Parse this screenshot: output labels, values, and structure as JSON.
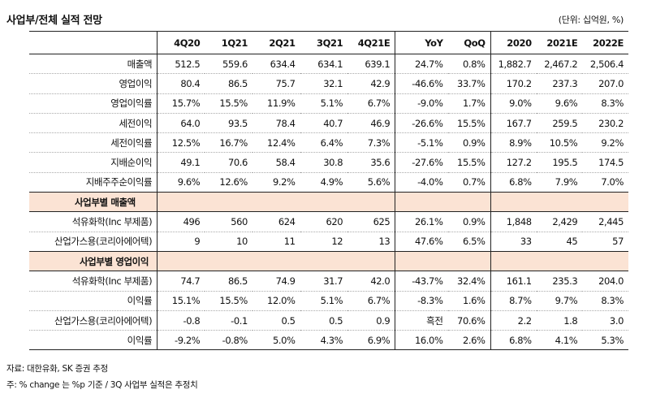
{
  "title": "사업부/전체 실적 전망",
  "unit": "(단위: 십억원, %)",
  "columns": [
    "",
    "4Q20",
    "1Q21",
    "2Q21",
    "3Q21",
    "4Q21E",
    "YoY",
    "QoQ",
    "2020",
    "2021E",
    "2022E"
  ],
  "rows": [
    {
      "label": "매출액",
      "values": [
        "512.5",
        "559.6",
        "634.4",
        "634.1",
        "639.1",
        "24.7%",
        "0.8%",
        "1,882.7",
        "2,467.2",
        "2,506.4"
      ]
    },
    {
      "label": "영업이익",
      "values": [
        "80.4",
        "86.5",
        "75.7",
        "32.1",
        "42.9",
        "-46.6%",
        "33.7%",
        "170.2",
        "237.3",
        "207.0"
      ]
    },
    {
      "label": "영업이익률",
      "values": [
        "15.7%",
        "15.5%",
        "11.9%",
        "5.1%",
        "6.7%",
        "-9.0%",
        "1.7%",
        "9.0%",
        "9.6%",
        "8.3%"
      ]
    },
    {
      "label": "세전이익",
      "values": [
        "64.0",
        "93.5",
        "78.4",
        "40.7",
        "46.9",
        "-26.6%",
        "15.5%",
        "167.7",
        "259.5",
        "230.2"
      ]
    },
    {
      "label": "세전이익률",
      "values": [
        "12.5%",
        "16.7%",
        "12.4%",
        "6.4%",
        "7.3%",
        "-5.1%",
        "0.9%",
        "8.9%",
        "10.5%",
        "9.2%"
      ]
    },
    {
      "label": "지배순이익",
      "values": [
        "49.1",
        "70.6",
        "58.4",
        "30.8",
        "35.6",
        "-27.6%",
        "15.5%",
        "127.2",
        "195.5",
        "174.5"
      ]
    },
    {
      "label": "지배주주순이익률",
      "values": [
        "9.6%",
        "12.6%",
        "9.2%",
        "4.9%",
        "5.6%",
        "-4.0%",
        "0.7%",
        "6.8%",
        "7.9%",
        "7.0%"
      ]
    }
  ],
  "section_sales": {
    "title": "사업부별 매출액",
    "rows": [
      {
        "label": "석유화학(Inc 부제품)",
        "values": [
          "496",
          "560",
          "624",
          "620",
          "625",
          "26.1%",
          "0.9%",
          "1,848",
          "2,429",
          "2,445"
        ]
      },
      {
        "label": "산업가스용(코리아에어텍)",
        "values": [
          "9",
          "10",
          "11",
          "12",
          "13",
          "47.6%",
          "6.5%",
          "33",
          "45",
          "57"
        ]
      }
    ]
  },
  "section_op": {
    "title": "사업부별 영업이익",
    "rows": [
      {
        "label": "석유화학(Inc 부제품)",
        "values": [
          "74.7",
          "86.5",
          "74.9",
          "31.7",
          "42.0",
          "-43.7%",
          "32.4%",
          "161.1",
          "235.3",
          "204.0"
        ]
      },
      {
        "label": "이익률",
        "values": [
          "15.1%",
          "15.5%",
          "12.0%",
          "5.1%",
          "6.7%",
          "-8.3%",
          "1.6%",
          "8.7%",
          "9.7%",
          "8.3%"
        ]
      },
      {
        "label": "산업가스용(코리아에어텍)",
        "values": [
          "-0.8",
          "-0.1",
          "0.5",
          "0.5",
          "0.9",
          "흑전",
          "70.6%",
          "2.2",
          "1.8",
          "3.0"
        ]
      },
      {
        "label": "이익률",
        "values": [
          "-9.2%",
          "-0.8%",
          "5.0%",
          "4.3%",
          "6.9%",
          "16.0%",
          "2.6%",
          "6.8%",
          "4.1%",
          "5.3%"
        ]
      }
    ]
  },
  "notes": {
    "source": "자료: 대한유화, SK 증권 추정",
    "note": "주: % change 는 %p 기준 / 3Q 사업부 실적은 추정치"
  }
}
